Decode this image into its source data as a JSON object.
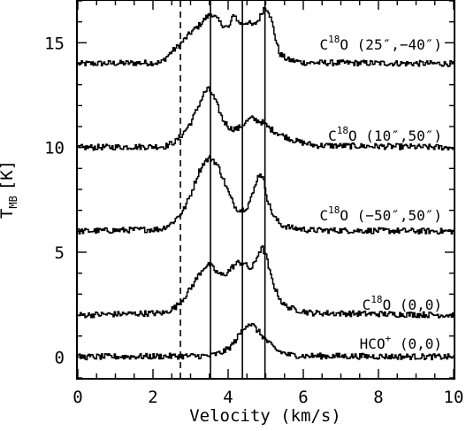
{
  "chart_data": {
    "type": "line",
    "xlabel": "Velocity (km/s)",
    "ylabel": "T",
    "ylabel_sub": "MB",
    "ylabel_unit": "[K]",
    "xlim": [
      0,
      10
    ],
    "ylim": [
      -1,
      17
    ],
    "x_ticks": [
      0,
      2,
      4,
      6,
      8,
      10
    ],
    "x_tick_labels": [
      "0",
      "2",
      "4",
      "6",
      "8",
      "10"
    ],
    "y_ticks": [
      0,
      5,
      10,
      15
    ],
    "y_tick_labels": [
      "0",
      "5",
      "10",
      "15"
    ],
    "grid": false,
    "legend": "none",
    "reference_lines": {
      "solid": [
        3.53,
        4.38,
        4.98
      ],
      "dashed": [
        2.73
      ]
    },
    "series": [
      {
        "label_main": "C",
        "label_sup": "18",
        "label_rest": "O (25″,−40″)",
        "offset": 14,
        "x": [
          0,
          2.2,
          2.5,
          2.7,
          2.85,
          3.0,
          3.2,
          3.4,
          3.55,
          3.8,
          4.0,
          4.15,
          4.25,
          4.35,
          4.5,
          4.65,
          4.8,
          4.95,
          5.05,
          5.15,
          5.25,
          5.35,
          5.55,
          6.0,
          10
        ],
        "y": [
          14.0,
          14.05,
          14.6,
          14.9,
          15.2,
          15.5,
          15.8,
          16.2,
          16.4,
          15.9,
          15.7,
          16.4,
          16.0,
          15.9,
          16.0,
          15.8,
          16.1,
          16.7,
          16.6,
          16.0,
          15.2,
          14.5,
          14.2,
          14.05,
          14.0
        ]
      },
      {
        "label_main": "C",
        "label_sup": "18",
        "label_rest": "O (10″,50″)",
        "offset": 10,
        "x": [
          0,
          2.3,
          2.6,
          2.8,
          3.0,
          3.2,
          3.35,
          3.45,
          3.55,
          3.7,
          3.85,
          4.05,
          4.25,
          4.45,
          4.6,
          4.75,
          4.9,
          5.1,
          5.4,
          5.8,
          6.3,
          10
        ],
        "y": [
          10.0,
          10.05,
          10.3,
          10.7,
          11.2,
          12.0,
          12.6,
          12.8,
          12.6,
          12.0,
          11.3,
          10.9,
          10.9,
          11.2,
          11.4,
          11.3,
          11.2,
          10.9,
          10.6,
          10.3,
          10.1,
          10.0
        ]
      },
      {
        "label_main": "C",
        "label_sup": "18",
        "label_rest": "O (−50″,50″)",
        "offset": 6,
        "x": [
          0,
          2.2,
          2.5,
          2.8,
          3.0,
          3.2,
          3.35,
          3.5,
          3.6,
          3.75,
          3.9,
          4.05,
          4.2,
          4.35,
          4.5,
          4.65,
          4.75,
          4.85,
          4.95,
          5.05,
          5.2,
          5.4,
          5.7,
          6.2,
          10
        ],
        "y": [
          6.0,
          6.1,
          6.4,
          7.0,
          7.8,
          8.8,
          9.3,
          9.5,
          9.4,
          9.0,
          8.3,
          7.6,
          7.1,
          7.0,
          7.2,
          7.8,
          8.5,
          8.8,
          8.3,
          7.4,
          6.7,
          6.3,
          6.15,
          6.05,
          6.0
        ]
      },
      {
        "label_main": "C",
        "label_sup": "18",
        "label_rest": "O (0,0)",
        "offset": 2,
        "x": [
          0,
          2.3,
          2.6,
          2.8,
          3.0,
          3.2,
          3.35,
          3.5,
          3.65,
          3.8,
          3.95,
          4.1,
          4.25,
          4.4,
          4.5,
          4.6,
          4.7,
          4.8,
          4.9,
          5.0,
          5.1,
          5.25,
          5.45,
          5.7,
          6.2,
          10
        ],
        "y": [
          2.0,
          2.1,
          2.4,
          2.8,
          3.3,
          3.9,
          4.3,
          4.4,
          4.1,
          3.9,
          4.0,
          4.3,
          4.5,
          4.5,
          4.3,
          4.2,
          4.5,
          5.0,
          5.2,
          4.8,
          4.0,
          3.2,
          2.5,
          2.3,
          2.1,
          2.0
        ]
      },
      {
        "label_main": "HCO",
        "label_sup": "+",
        "label_rest": " (0,0)",
        "offset": 0,
        "x": [
          0,
          3.5,
          3.8,
          4.0,
          4.15,
          4.3,
          4.45,
          4.55,
          4.65,
          4.8,
          4.95,
          5.1,
          5.3,
          5.6,
          6.0,
          10
        ],
        "y": [
          0.0,
          0.05,
          0.2,
          0.4,
          0.7,
          1.1,
          1.5,
          1.6,
          1.5,
          1.2,
          0.9,
          0.6,
          0.3,
          0.1,
          0.05,
          0.0
        ]
      }
    ]
  }
}
